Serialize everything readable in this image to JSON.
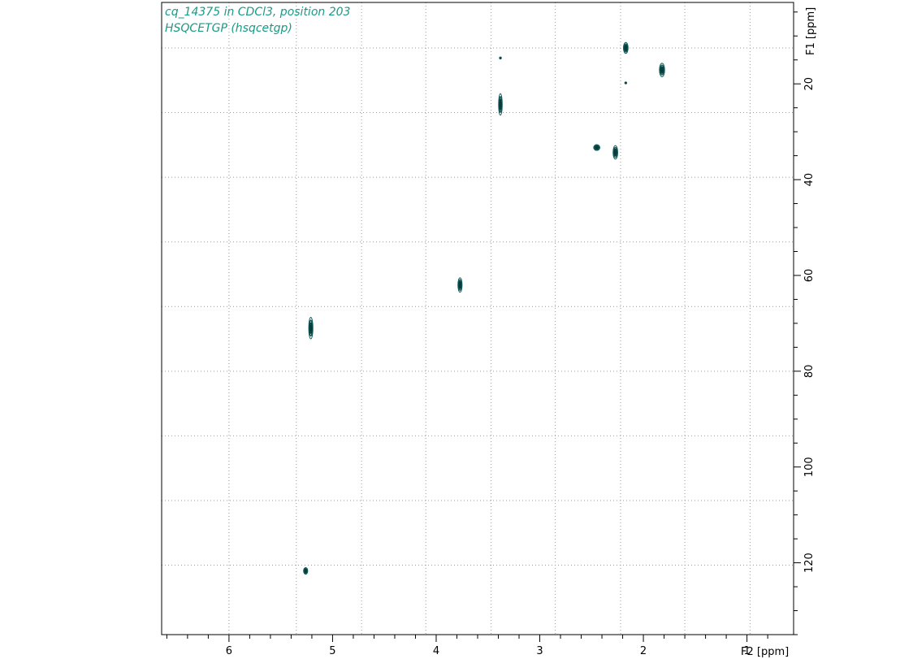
{
  "colors": {
    "title": "#1a9a86",
    "contour": "#0f5a58",
    "contour_dark": "#0b3a3a",
    "grid": "#9a9a9a",
    "axis": "#000000"
  },
  "chart_data": {
    "type": "heatmap",
    "subtype": "2D NMR HSQC contour plot",
    "title": "cq_14375 in CDCl3, position 203",
    "subtitle": "HSQCETGP (hsqcetgp)",
    "xlabel": "F2 [ppm]",
    "ylabel": "F1 [ppm]",
    "x_axis": {
      "range": [
        6.65,
        0.55
      ],
      "reversed": true,
      "tick_labels": [
        "6",
        "5",
        "4",
        "3",
        "2",
        "1"
      ],
      "ticks": [
        6,
        5,
        4,
        3,
        2,
        1
      ],
      "grid": [
        6.0,
        5.35,
        4.72,
        4.1,
        3.47,
        2.85,
        2.22,
        1.6,
        0.97
      ]
    },
    "y_axis": {
      "range": [
        3,
        135
      ],
      "reversed": true,
      "position": "right",
      "tick_labels": [
        "20",
        "40",
        "60",
        "80",
        "100",
        "120"
      ],
      "ticks": [
        20,
        40,
        60,
        80,
        100,
        120
      ],
      "grid": [
        12.5,
        26,
        39.5,
        53,
        66.5,
        80,
        93.5,
        107,
        120.5
      ]
    },
    "grid": true,
    "peaks": [
      {
        "f2": 2.17,
        "f1": 12.5,
        "f2_width": 0.045,
        "f1_width": 2.3
      },
      {
        "f2": 2.17,
        "f1": 19.8,
        "f2_width": 0.01,
        "f1_width": 0.3
      },
      {
        "f2": 1.82,
        "f1": 17.1,
        "f2_width": 0.05,
        "f1_width": 2.8
      },
      {
        "f2": 3.38,
        "f1": 14.6,
        "f2_width": 0.015,
        "f1_width": 0.4
      },
      {
        "f2": 3.38,
        "f1": 24.3,
        "f2_width": 0.035,
        "f1_width": 4.5
      },
      {
        "f2": 2.45,
        "f1": 33.3,
        "f2_width": 0.06,
        "f1_width": 1.2
      },
      {
        "f2": 2.27,
        "f1": 34.3,
        "f2_width": 0.045,
        "f1_width": 2.8
      },
      {
        "f2": 3.77,
        "f1": 62.0,
        "f2_width": 0.04,
        "f1_width": 3.0
      },
      {
        "f2": 5.21,
        "f1": 71.0,
        "f2_width": 0.04,
        "f1_width": 4.5
      },
      {
        "f2": 5.26,
        "f1": 121.7,
        "f2_width": 0.04,
        "f1_width": 1.4
      }
    ]
  }
}
